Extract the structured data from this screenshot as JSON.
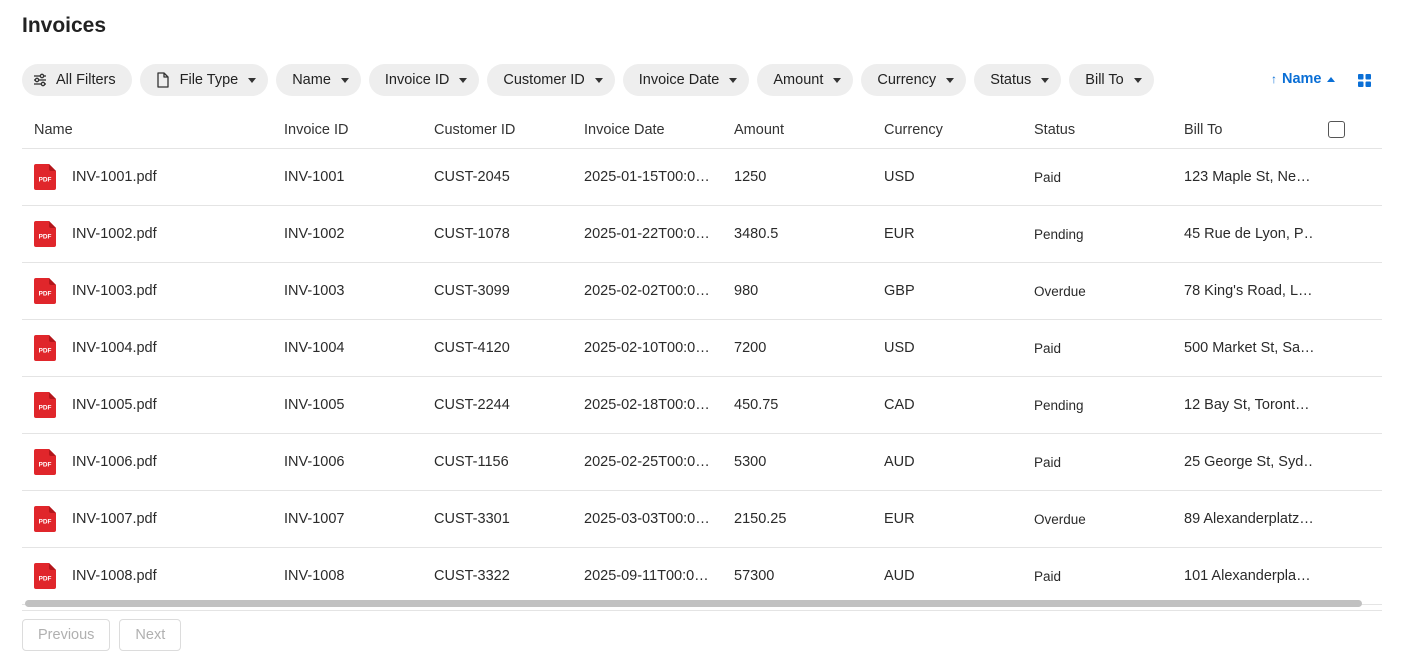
{
  "page": {
    "title": "Invoices"
  },
  "filters": [
    {
      "label": "All Filters",
      "icon": "sliders-icon"
    },
    {
      "label": "File Type",
      "icon": "file-icon"
    },
    {
      "label": "Name"
    },
    {
      "label": "Invoice ID"
    },
    {
      "label": "Customer ID"
    },
    {
      "label": "Invoice Date"
    },
    {
      "label": "Amount"
    },
    {
      "label": "Currency"
    },
    {
      "label": "Status"
    },
    {
      "label": "Bill To"
    }
  ],
  "sort": {
    "label": "Name",
    "direction": "ascending",
    "icon": "arrow-up-icon",
    "color": "#0a6fd6"
  },
  "view_toggle": {
    "icon": "grid-view-icon",
    "color": "#0a6fd6"
  },
  "table": {
    "columns": [
      "Name",
      "Invoice ID",
      "Customer ID",
      "Invoice Date",
      "Amount",
      "Currency",
      "Status",
      "Bill To"
    ],
    "rows": [
      {
        "name": "INV-1001.pdf",
        "invoice_id": "INV-1001",
        "customer_id": "CUST-2045",
        "date": "2025-01-15T00:0…",
        "amount": "1250",
        "currency": "USD",
        "status": "Paid",
        "bill_to": "123 Maple St, Ne…"
      },
      {
        "name": "INV-1002.pdf",
        "invoice_id": "INV-1002",
        "customer_id": "CUST-1078",
        "date": "2025-01-22T00:0…",
        "amount": "3480.5",
        "currency": "EUR",
        "status": "Pending",
        "bill_to": "45 Rue de Lyon, P…"
      },
      {
        "name": "INV-1003.pdf",
        "invoice_id": "INV-1003",
        "customer_id": "CUST-3099",
        "date": "2025-02-02T00:0…",
        "amount": "980",
        "currency": "GBP",
        "status": "Overdue",
        "bill_to": "78 King's Road, L…"
      },
      {
        "name": "INV-1004.pdf",
        "invoice_id": "INV-1004",
        "customer_id": "CUST-4120",
        "date": "2025-02-10T00:0…",
        "amount": "7200",
        "currency": "USD",
        "status": "Paid",
        "bill_to": "500 Market St, Sa…"
      },
      {
        "name": "INV-1005.pdf",
        "invoice_id": "INV-1005",
        "customer_id": "CUST-2244",
        "date": "2025-02-18T00:0…",
        "amount": "450.75",
        "currency": "CAD",
        "status": "Pending",
        "bill_to": "12 Bay St, Toront…"
      },
      {
        "name": "INV-1006.pdf",
        "invoice_id": "INV-1006",
        "customer_id": "CUST-1156",
        "date": "2025-02-25T00:0…",
        "amount": "5300",
        "currency": "AUD",
        "status": "Paid",
        "bill_to": "25 George St, Syd…"
      },
      {
        "name": "INV-1007.pdf",
        "invoice_id": "INV-1007",
        "customer_id": "CUST-3301",
        "date": "2025-03-03T00:0…",
        "amount": "2150.25",
        "currency": "EUR",
        "status": "Overdue",
        "bill_to": "89 Alexanderplatz…"
      },
      {
        "name": "INV-1008.pdf",
        "invoice_id": "INV-1008",
        "customer_id": "CUST-3322",
        "date": "2025-09-11T00:0…",
        "amount": "57300",
        "currency": "AUD",
        "status": "Paid",
        "bill_to": "101 Alexanderpla…"
      }
    ],
    "file_icon": {
      "name": "pdf-file-icon",
      "label": "PDF",
      "color": "#e0262b"
    }
  },
  "pagination": {
    "previous_label": "Previous",
    "next_label": "Next"
  }
}
